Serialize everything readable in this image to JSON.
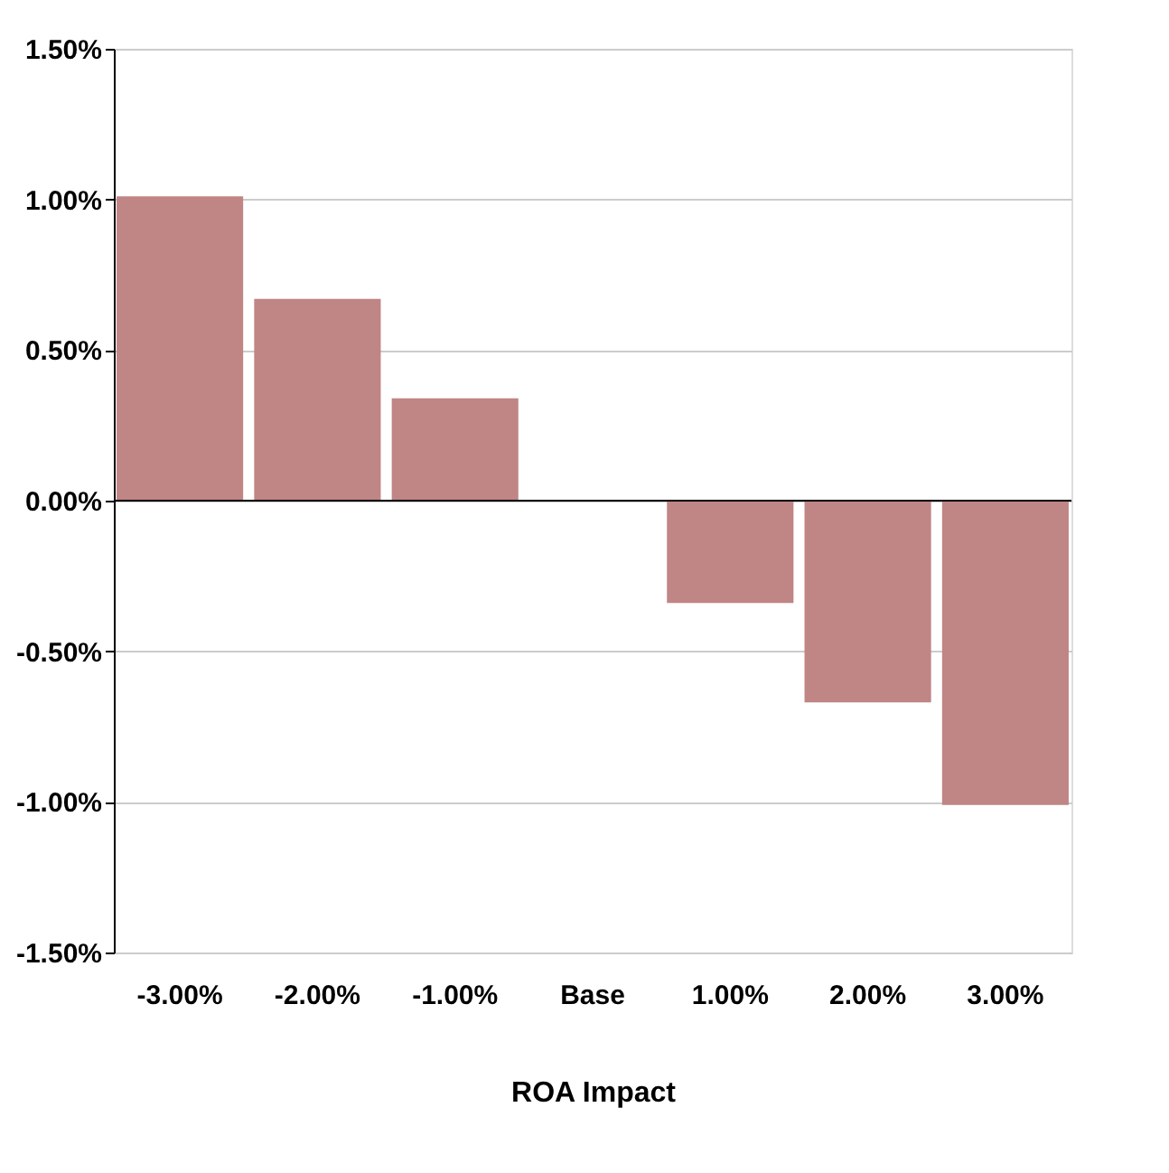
{
  "chart_data": {
    "type": "bar",
    "xlabel": "ROA Impact",
    "categories": [
      "-3.00%",
      "-2.00%",
      "-1.00%",
      "Base",
      "1.00%",
      "2.00%",
      "3.00%"
    ],
    "values": [
      1.01,
      0.67,
      0.34,
      0,
      -0.34,
      -0.67,
      -1.01
    ],
    "color": "#c08585",
    "ylim": [
      -1.5,
      1.5
    ],
    "yticks": [
      {
        "value": -1.5,
        "label": "-1.50%"
      },
      {
        "value": -1.0,
        "label": "-1.00%"
      },
      {
        "value": -0.5,
        "label": "-0.50%"
      },
      {
        "value": 0,
        "label": "0.00%"
      },
      {
        "value": 0.5,
        "label": "0.50%"
      },
      {
        "value": 1.0,
        "label": "1.00%"
      },
      {
        "value": 1.5,
        "label": "1.50%"
      }
    ],
    "grid": "y"
  }
}
